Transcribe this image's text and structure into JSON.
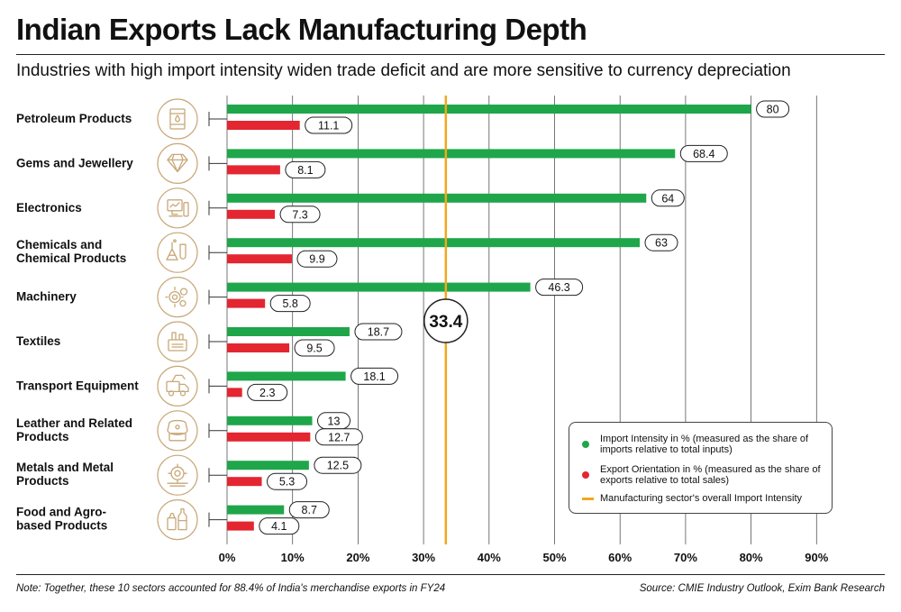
{
  "title": "Indian Exports Lack Manufacturing Depth",
  "subtitle": "Industries with high import intensity widen trade deficit and are more sensitive to currency depreciation",
  "note": "Note: Together, these 10 sectors accounted for 88.4% of India's merchandise exports in FY24",
  "source": "Source: CMIE Industry Outlook, Exim Bank Research",
  "colors": {
    "import": "#1fa64a",
    "export": "#e32630",
    "reference": "#f2a81d",
    "icon": "#c8a878"
  },
  "chart_data": {
    "type": "bar",
    "orientation": "horizontal",
    "categories": [
      "Petroleum Products",
      "Gems and Jewellery",
      "Electronics",
      "Chemicals and Chemical Products",
      "Machinery",
      "Textiles",
      "Transport Equipment",
      "Leather and Related Products",
      "Metals and Metal Products",
      "Food and Agro-based Products"
    ],
    "category_lines": [
      [
        "Petroleum Products"
      ],
      [
        "Gems and Jewellery"
      ],
      [
        "Electronics"
      ],
      [
        "Chemicals and",
        "Chemical Products"
      ],
      [
        "Machinery"
      ],
      [
        "Textiles"
      ],
      [
        "Transport Equipment"
      ],
      [
        "Leather and Related",
        "Products"
      ],
      [
        "Metals and Metal",
        "Products"
      ],
      [
        "Food and Agro-",
        "based Products"
      ]
    ],
    "icons": [
      "oil-barrel-icon",
      "diamond-icon",
      "electronics-icon",
      "chemical-flask-icon",
      "gears-icon",
      "textile-loom-icon",
      "truck-icon",
      "leather-bag-icon",
      "metal-gear-icon",
      "food-bottle-icon"
    ],
    "series": [
      {
        "name": "Import Intensity in % (measured as the share of imports relative to total inputs)",
        "values": [
          80,
          68.4,
          64,
          63,
          46.3,
          18.7,
          18.1,
          13,
          12.5,
          8.7
        ]
      },
      {
        "name": "Export Orientation in % (measured as the share of exports relative to total sales)",
        "values": [
          11.1,
          8.1,
          7.3,
          9.9,
          5.8,
          9.5,
          2.3,
          12.7,
          5.3,
          4.1
        ]
      }
    ],
    "reference_line": {
      "name": "Manufacturing sector's overall Import Intensity",
      "value": 33.4,
      "label": "33.4"
    },
    "xlim": [
      0,
      90
    ],
    "xticks": [
      "0%",
      "10%",
      "20%",
      "30%",
      "40%",
      "50%",
      "60%",
      "70%",
      "80%",
      "90%"
    ],
    "grid": "vertical",
    "legend_position": "bottom-right"
  }
}
